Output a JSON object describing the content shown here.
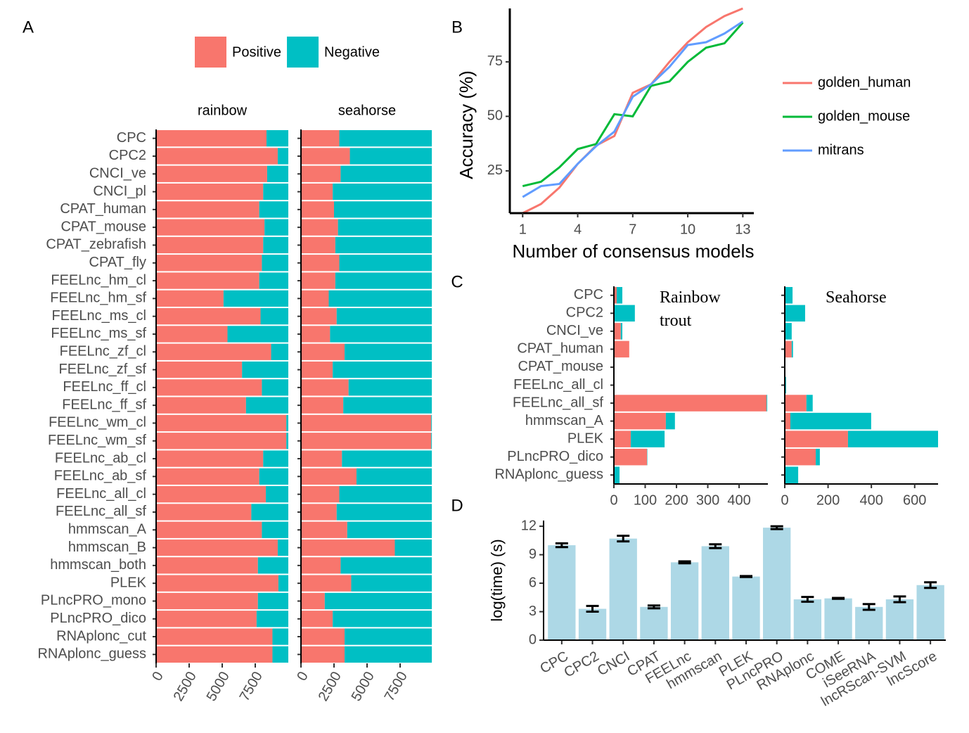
{
  "chart_data": [
    {
      "panel": "A",
      "type": "bar",
      "orientation": "horizontal",
      "stacked": true,
      "series": [
        {
          "name": "Positive",
          "color": "#f8766d"
        },
        {
          "name": "Negative",
          "color": "#00bfc4"
        }
      ],
      "categories": [
        "CPC",
        "CPC2",
        "CNCI_ve",
        "CNCI_pl",
        "CPAT_human",
        "CPAT_mouse",
        "CPAT_zebrafish",
        "CPAT_fly",
        "FEELnc_hm_cl",
        "FEELnc_hm_sf",
        "FEELnc_ms_cl",
        "FEELnc_ms_sf",
        "FEELnc_zf_cl",
        "FEELnc_zf_sf",
        "FEELnc_ff_cl",
        "FEELnc_ff_sf",
        "FEELnc_wm_cl",
        "FEELnc_wm_sf",
        "FEELnc_ab_cl",
        "FEELnc_ab_sf",
        "FEELnc_all_cl",
        "FEELnc_all_sf",
        "hmmscan_A",
        "hmmscan_B",
        "hmmscan_both",
        "PLEK",
        "PLncPRO_mono",
        "PLncPRO_dico",
        "RNAplonc_cut",
        "RNAplonc_guess"
      ],
      "facets": [
        {
          "title": "rainbow",
          "xlim": [
            0,
            10000
          ],
          "xticks": [
            0,
            2500,
            5000,
            7500
          ],
          "series": [
            {
              "values": [
                8350,
                9200,
                8400,
                8100,
                7800,
                8200,
                8100,
                8000,
                7800,
                5100,
                7900,
                5400,
                8700,
                6500,
                8000,
                6800,
                9850,
                9850,
                8100,
                7800,
                8300,
                7200,
                8000,
                9200,
                7700,
                9250,
                7700,
                7600,
                8800,
                8800
              ]
            },
            {
              "values": [
                1650,
                800,
                1600,
                1900,
                2200,
                1800,
                1900,
                2000,
                2200,
                4900,
                2100,
                4600,
                1300,
                3500,
                2000,
                3200,
                150,
                150,
                1900,
                2200,
                1700,
                2800,
                2000,
                800,
                2300,
                750,
                2300,
                2400,
                1200,
                1200
              ]
            }
          ]
        },
        {
          "title": "seahorse",
          "xlim": [
            0,
            10000
          ],
          "xticks": [
            0,
            2500,
            5000,
            7500
          ],
          "series": [
            {
              "values": [
                2900,
                3700,
                3000,
                2400,
                2500,
                2800,
                2600,
                2900,
                2600,
                2100,
                2700,
                2200,
                3300,
                2400,
                3600,
                3200,
                9850,
                9850,
                3100,
                4200,
                2900,
                2700,
                3500,
                7100,
                3000,
                3800,
                1800,
                2400,
                3300,
                3300
              ]
            },
            {
              "values": [
                7000,
                6200,
                6900,
                7500,
                7400,
                7100,
                7300,
                7000,
                7300,
                7800,
                7200,
                7700,
                6600,
                7500,
                6300,
                6700,
                50,
                50,
                6800,
                5700,
                7000,
                7200,
                6400,
                2800,
                6900,
                6100,
                8100,
                7500,
                6600,
                6600
              ]
            }
          ]
        }
      ]
    },
    {
      "panel": "B",
      "type": "line",
      "xlabel": "Number of consensus models",
      "ylabel": "Accuracy (%)",
      "x": [
        1,
        2,
        3,
        4,
        5,
        6,
        7,
        8,
        9,
        10,
        11,
        12,
        13
      ],
      "xlim": [
        0.3,
        13.6
      ],
      "xticks": [
        1,
        4,
        7,
        10,
        13
      ],
      "ylim": [
        5.6,
        99.5
      ],
      "yticks": [
        25,
        50,
        75
      ],
      "series": [
        {
          "name": "golden_human",
          "color": "#f8766d",
          "values": [
            5.6,
            9.8,
            17.3,
            28.2,
            36.6,
            41,
            60.8,
            64.7,
            75,
            84,
            91,
            96,
            99.5
          ]
        },
        {
          "name": "golden_mouse",
          "color": "#00ba38",
          "values": [
            18,
            20,
            26.6,
            35,
            37.3,
            51,
            50,
            64,
            66,
            75,
            81.5,
            83.5,
            93
          ]
        },
        {
          "name": "mitrans",
          "color": "#619cff",
          "values": [
            13,
            18,
            19,
            28.2,
            36.3,
            43,
            59,
            64.7,
            72.7,
            82.7,
            84,
            88,
            93.5
          ]
        }
      ]
    },
    {
      "panel": "C",
      "type": "bar",
      "orientation": "horizontal",
      "stacked": true,
      "series": [
        {
          "color": "#f8766d"
        },
        {
          "color": "#00bfc4"
        }
      ],
      "categories": [
        "CPC",
        "CPC2",
        "CNCI_ve",
        "CPAT_human",
        "CPAT_mouse",
        "FEELnc_all_cl",
        "FEELnc_all_sf",
        "hmmscan_A",
        "PLEK",
        "PLncPRO_dico",
        "RNAplonc_guess"
      ],
      "facets": [
        {
          "title": "Rainbow trout",
          "xlim": [
            0,
            492
          ],
          "xticks": [
            0,
            100,
            200,
            300,
            400
          ],
          "series": [
            {
              "values": [
                9,
                0,
                22,
                49,
                0,
                0,
                488,
                166,
                54,
                106,
                0
              ]
            },
            {
              "values": [
                18,
                67,
                5,
                0,
                0,
                0,
                2,
                29,
                108,
                1,
                18
              ]
            }
          ]
        },
        {
          "title": "Seahorse",
          "xlim": [
            0,
            708
          ],
          "xticks": [
            0,
            200,
            400,
            600
          ],
          "series": [
            {
              "values": [
                0,
                0,
                0,
                32,
                0,
                0,
                100,
                26,
                292,
                143,
                0
              ]
            },
            {
              "values": [
                36,
                94,
                32,
                6,
                0,
                6,
                29,
                373,
                416,
                19,
                62
              ]
            }
          ]
        }
      ]
    },
    {
      "panel": "D",
      "type": "bar",
      "ylabel": "log(time) (s)",
      "color": "#add8e6",
      "categories": [
        "CPC",
        "CPC2",
        "CNCI",
        "CPAT",
        "FEELnc",
        "hmmscan",
        "PLEK",
        "PLncPRO",
        "RNAplonc",
        "COME",
        "iSeeRNA",
        "lncRScan-SVM",
        "lncScore"
      ],
      "values": [
        10.0,
        3.3,
        10.7,
        3.5,
        8.2,
        9.9,
        6.7,
        11.85,
        4.3,
        4.4,
        3.5,
        4.3,
        5.8
      ],
      "errors": [
        0.2,
        0.3,
        0.3,
        0.15,
        0.1,
        0.2,
        0.05,
        0.15,
        0.25,
        0.05,
        0.3,
        0.3,
        0.3
      ],
      "ylim": [
        0,
        12.6
      ],
      "yticks": [
        0,
        3,
        6,
        9,
        12
      ]
    }
  ]
}
